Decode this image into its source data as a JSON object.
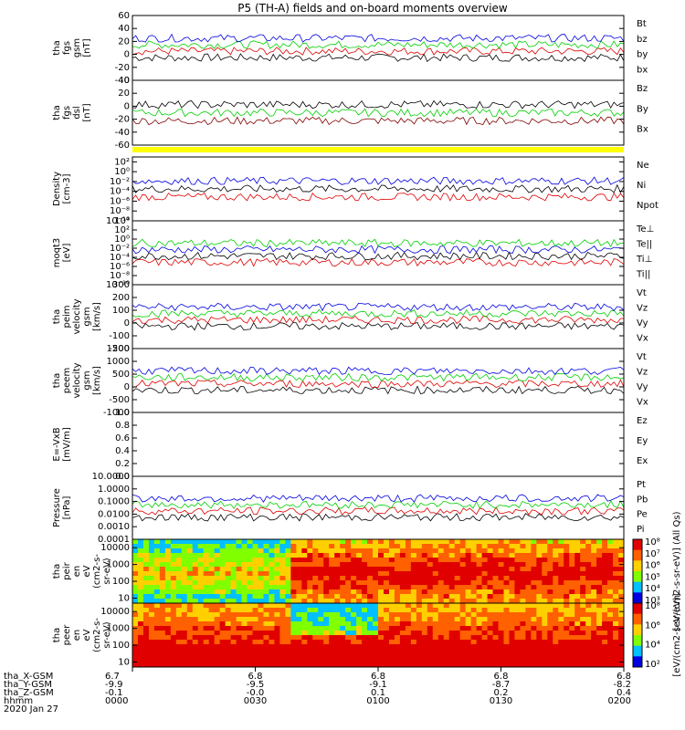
{
  "title": "P5 (TH-A) fields and on-board moments overview",
  "colors": {
    "black": "#000000",
    "red": "#e00000",
    "green": "#00d000",
    "blue": "#0000e0",
    "darkred": "#800000",
    "yellow": "#ffff00"
  },
  "chart_data": [
    {
      "type": "line",
      "id": "fgs_gsm",
      "ylabel_lines": [
        "tha",
        "fgs",
        "gsm",
        "[nT]"
      ],
      "ylim": [
        -40,
        60
      ],
      "ticks": [
        "60",
        "40",
        "20",
        "0",
        "-20",
        "-40"
      ],
      "tick_values": [
        60,
        40,
        20,
        0,
        -20,
        -40
      ],
      "series": [
        {
          "name": "Bt",
          "color": "#000000"
        },
        {
          "name": "bz",
          "color": "#e00000"
        },
        {
          "name": "by",
          "color": "#00d000"
        },
        {
          "name": "bx",
          "color": "#0000e0"
        }
      ]
    },
    {
      "type": "line",
      "id": "fgs_dsl",
      "ylabel_lines": [
        "tha",
        "fgs",
        "dsl",
        "[nT]"
      ],
      "ylim": [
        -60,
        40
      ],
      "ticks": [
        "40",
        "20",
        "0",
        "-20",
        "-40",
        "-60"
      ],
      "tick_values": [
        40,
        20,
        0,
        -20,
        -40,
        -60
      ],
      "series": [
        {
          "name": "Bz",
          "color": "#800000"
        },
        {
          "name": "By",
          "color": "#00d000"
        },
        {
          "name": "Bx",
          "color": "#000000"
        }
      ]
    },
    {
      "type": "line",
      "id": "density",
      "ylabel_lines": [
        "Density",
        "[cm-3]"
      ],
      "log": true,
      "ylim": [
        -10,
        3
      ],
      "ticks": [
        "10²",
        "10⁰",
        "10⁻²",
        "10⁻⁴",
        "10⁻⁶",
        "10⁻⁸",
        "10⁻¹⁰"
      ],
      "tick_values": [
        2,
        0,
        -2,
        -4,
        -6,
        -8,
        -10
      ],
      "series": [
        {
          "name": "Ne",
          "color": "#e00000"
        },
        {
          "name": "Ni",
          "color": "#000000"
        },
        {
          "name": "Npot",
          "color": "#0000e0"
        }
      ]
    },
    {
      "type": "line",
      "id": "temp",
      "ylabel_lines": [
        "moqt3",
        "[eV]"
      ],
      "log": true,
      "ylim": [
        -10,
        4
      ],
      "ticks": [
        "10⁴",
        "10²",
        "10⁰",
        "10⁻²",
        "10⁻⁴",
        "10⁻⁶",
        "10⁻⁸",
        "10⁻¹⁰"
      ],
      "tick_values": [
        4,
        2,
        0,
        -2,
        -4,
        -6,
        -8,
        -10
      ],
      "series": [
        {
          "name": "Te⊥",
          "color": "#e00000"
        },
        {
          "name": "Te||",
          "color": "#000000"
        },
        {
          "name": "Ti⊥",
          "color": "#0000e0"
        },
        {
          "name": "Ti||",
          "color": "#00d000"
        }
      ]
    },
    {
      "type": "line",
      "id": "peim_vel",
      "ylabel_lines": [
        "tha",
        "peim",
        "velocity",
        "gsm",
        "[km/s]"
      ],
      "ylim": [
        -200,
        300
      ],
      "ticks": [
        "300",
        "200",
        "100",
        "0",
        "-100",
        "-200"
      ],
      "tick_values": [
        300,
        200,
        100,
        0,
        -100,
        -200
      ],
      "series": [
        {
          "name": "Vt",
          "color": "#000000"
        },
        {
          "name": "Vz",
          "color": "#e00000"
        },
        {
          "name": "Vy",
          "color": "#00d000"
        },
        {
          "name": "Vx",
          "color": "#0000e0"
        }
      ]
    },
    {
      "type": "line",
      "id": "peem_vel",
      "ylabel_lines": [
        "tha",
        "peem",
        "velocity",
        "gsm",
        "[km/s]"
      ],
      "ylim": [
        -1000,
        1500
      ],
      "ticks": [
        "1500",
        "1000",
        "500",
        "0",
        "-500",
        "-1000"
      ],
      "tick_values": [
        1500,
        1000,
        500,
        0,
        -500,
        -1000
      ],
      "series": [
        {
          "name": "Vt",
          "color": "#000000"
        },
        {
          "name": "Vz",
          "color": "#e00000"
        },
        {
          "name": "Vy",
          "color": "#00d000"
        },
        {
          "name": "Vx",
          "color": "#0000e0"
        }
      ]
    },
    {
      "type": "line",
      "id": "efield",
      "ylabel_lines": [
        "E=-VxB",
        "[mV/m]"
      ],
      "ylim": [
        0,
        1
      ],
      "ticks": [
        "1.0",
        "0.8",
        "0.6",
        "0.4",
        "0.2",
        "0.0"
      ],
      "tick_values": [
        1,
        0.8,
        0.6,
        0.4,
        0.2,
        0
      ],
      "series": [
        {
          "name": "Ez",
          "color": "#e00000"
        },
        {
          "name": "Ey",
          "color": "#00d000"
        },
        {
          "name": "Ex",
          "color": "#0000e0"
        }
      ]
    },
    {
      "type": "line",
      "id": "pressure",
      "ylabel_lines": [
        "Pressure",
        "[nPa]"
      ],
      "log": true,
      "ylim": [
        -4,
        1
      ],
      "ticks": [
        "10.0000",
        "1.0000",
        "0.1000",
        "0.0100",
        "0.0010",
        "0.0001"
      ],
      "tick_values": [
        1,
        0,
        -1,
        -2,
        -3,
        -4
      ],
      "series": [
        {
          "name": "Pt",
          "color": "#000000"
        },
        {
          "name": "Pb",
          "color": "#e00000"
        },
        {
          "name": "Pe",
          "color": "#00d000"
        },
        {
          "name": "Pi",
          "color": "#0000e0"
        }
      ]
    },
    {
      "type": "heatmap",
      "id": "peir",
      "ylabel_lines": [
        "tha",
        "peir",
        "en",
        "eV",
        "(cm2-s-",
        "sr-eV)"
      ],
      "log": true,
      "ylim": [
        0.7,
        4.5
      ],
      "ticks": [
        "10000",
        "1000",
        "100",
        "10"
      ],
      "tick_values": [
        4,
        3,
        2,
        1
      ],
      "colorbar": {
        "label": "[eV/(cm2-s-sr-eV)] (All Qs)",
        "ticks": [
          "10⁸",
          "10⁷",
          "10⁶",
          "10⁵",
          "10⁴",
          "10³"
        ]
      }
    },
    {
      "type": "heatmap",
      "id": "peer",
      "ylabel_lines": [
        "tha",
        "peer",
        "en",
        "eV",
        "(cm2-s-",
        "sr-eV)"
      ],
      "log": true,
      "ylim": [
        0.7,
        4.5
      ],
      "ticks": [
        "10000",
        "1000",
        "100",
        "10"
      ],
      "tick_values": [
        4,
        3,
        2,
        1
      ],
      "colorbar": {
        "label": "[eV/(cm2-s-sr-eV)]",
        "ticks": [
          "10⁸",
          "10⁶",
          "10⁴",
          "10²"
        ]
      }
    }
  ],
  "xaxis": {
    "row_labels": [
      "tha_X-GSM",
      "tha_Y-GSM",
      "tha_Z-GSM",
      "hhmm",
      "2020 Jan 27"
    ],
    "ticks": [
      {
        "x": "6.7",
        "y": "-9.9",
        "z": "-0.1",
        "hhmm": "0000"
      },
      {
        "x": "6.8",
        "y": "-9.5",
        "z": "-0.0",
        "hhmm": "0030"
      },
      {
        "x": "6.8",
        "y": "-9.1",
        "z": "0.1",
        "hhmm": "0100"
      },
      {
        "x": "6.8",
        "y": "-8.7",
        "z": "0.2",
        "hhmm": "0130"
      },
      {
        "x": "6.8",
        "y": "-8.2",
        "z": "0.4",
        "hhmm": "0200"
      }
    ]
  }
}
